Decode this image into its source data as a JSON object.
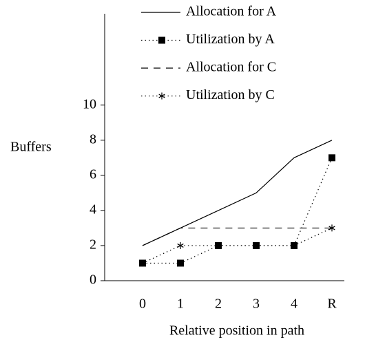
{
  "chart_data": {
    "type": "line",
    "x_label": "Relative position in path",
    "y_label": "Buffers",
    "categories": [
      "0",
      "1",
      "2",
      "3",
      "4",
      "R"
    ],
    "ylim": [
      0,
      15.2
    ],
    "yticks": [
      0,
      2,
      4,
      6,
      8,
      10
    ],
    "legend": "top-right",
    "series": [
      {
        "name": "Allocation for A",
        "color": "#000000",
        "style": "solid",
        "marker": "none",
        "values": [
          2,
          3,
          4,
          5,
          7,
          8
        ]
      },
      {
        "name": "Utilization by A",
        "color": "#000000",
        "style": "dotted",
        "marker": "square",
        "values": [
          1,
          1,
          2,
          2,
          2,
          7
        ]
      },
      {
        "name": "Allocation for C",
        "color": "#000000",
        "style": "dashed",
        "marker": "none",
        "values": [
          2,
          3,
          3,
          3,
          3,
          3
        ]
      },
      {
        "name": "Utilization by C",
        "color": "#000000",
        "style": "dotted",
        "marker": "star",
        "values": [
          1,
          2,
          2,
          2,
          2,
          3
        ]
      }
    ]
  }
}
